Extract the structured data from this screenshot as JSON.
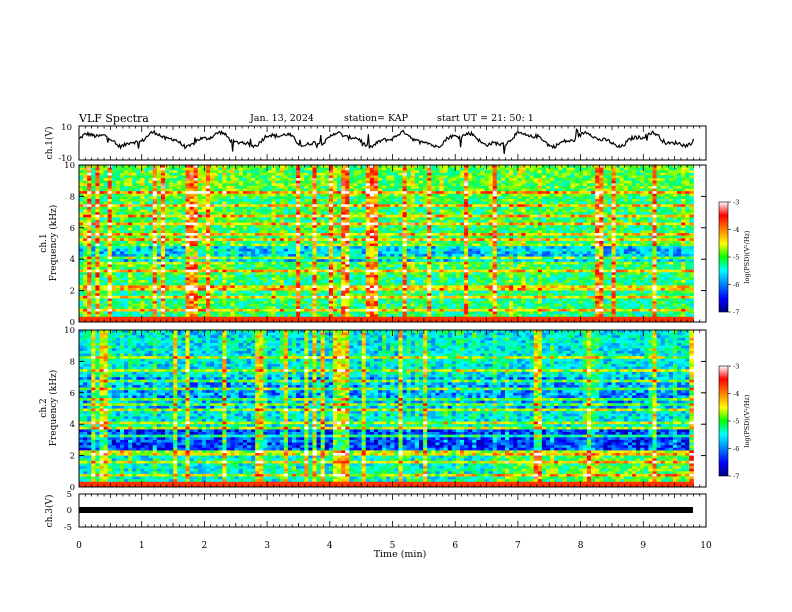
{
  "header": {
    "title": "VLF Spectra",
    "date": "Jan. 13, 2024",
    "station": "station= KAP",
    "start": "start UT =  21: 50: 1"
  },
  "chart_data": [
    {
      "type": "line",
      "name": "ch1-waveform",
      "ylabel": "ch.1(V)",
      "ylim": [
        -10,
        10
      ],
      "yticks": [
        "10",
        "-10"
      ],
      "xlim": [
        0,
        10
      ],
      "note": "noisy oscillating waveform, roughly -4 to 8 V with spikes"
    },
    {
      "type": "heatmap",
      "name": "ch1-spectrogram",
      "ylabel_top": "ch.1",
      "ylabel": "Frequency (kHz)",
      "ylim": [
        0,
        10
      ],
      "yticks": [
        "0",
        "2",
        "4",
        "6",
        "8",
        "10"
      ],
      "xlim": [
        0,
        9.8
      ],
      "colorbar": {
        "label": "log(PSD)(V²/Hz)",
        "range": [
          -7,
          -3
        ],
        "ticks": [
          "-3",
          "-4",
          "-5",
          "-6",
          "-7"
        ]
      }
    },
    {
      "type": "heatmap",
      "name": "ch2-spectrogram",
      "ylabel_top": "ch.2",
      "ylabel": "Frequency (kHz)",
      "ylim": [
        0,
        10
      ],
      "yticks": [
        "0",
        "2",
        "4",
        "6",
        "8",
        "10"
      ],
      "xlim": [
        0,
        9.8
      ],
      "colorbar": {
        "label": "log(PSD)(V²/Hz)",
        "range": [
          -7,
          -3
        ],
        "ticks": [
          "-3",
          "-4",
          "-5",
          "-6",
          "-7"
        ]
      }
    },
    {
      "type": "line",
      "name": "ch3-signal",
      "ylabel": "ch.3(V)",
      "ylim": [
        -5,
        5
      ],
      "yticks": [
        "5",
        "0",
        "-5"
      ],
      "xlim": [
        0,
        9.8
      ],
      "note": "flat thick line at about 0 V"
    }
  ],
  "xaxis": {
    "label": "Time (min)",
    "ticks": [
      "0",
      "1",
      "2",
      "3",
      "4",
      "5",
      "6",
      "7",
      "8",
      "9",
      "10"
    ],
    "range": [
      0,
      10
    ]
  },
  "colors": {
    "palette": [
      "#00007f",
      "#0000ff",
      "#0080ff",
      "#00ffff",
      "#00ff60",
      "#80ff00",
      "#ffff00",
      "#ff8000",
      "#ff0000",
      "#ffffff"
    ]
  }
}
